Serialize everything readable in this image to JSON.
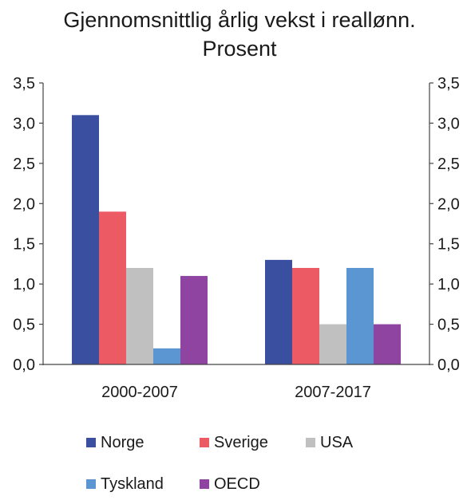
{
  "chart_data": {
    "type": "bar",
    "title": [
      "Gjennomsnittlig årlig vekst i reallønn.",
      "Prosent"
    ],
    "xlabel": "",
    "ylabel": "",
    "categories": [
      "2000-2007",
      "2007-2017"
    ],
    "series": [
      {
        "name": "Norge",
        "color": "#3a4fa0",
        "values": [
          3.1,
          1.3
        ]
      },
      {
        "name": "Sverige",
        "color": "#ec5b63",
        "values": [
          1.9,
          1.2
        ]
      },
      {
        "name": "USA",
        "color": "#c0c0c0",
        "values": [
          1.2,
          0.5
        ]
      },
      {
        "name": "Tyskland",
        "color": "#5b96d2",
        "values": [
          0.2,
          1.2
        ]
      },
      {
        "name": "OECD",
        "color": "#8e44a0",
        "values": [
          1.1,
          0.5
        ]
      }
    ],
    "ylim": [
      0,
      3.5
    ],
    "yticks": [
      "0,0",
      "0,5",
      "1,0",
      "1,5",
      "2,0",
      "2,5",
      "3,0",
      "3,5"
    ],
    "secondary_y_axis": true,
    "grid": false,
    "legend_position": "bottom"
  }
}
